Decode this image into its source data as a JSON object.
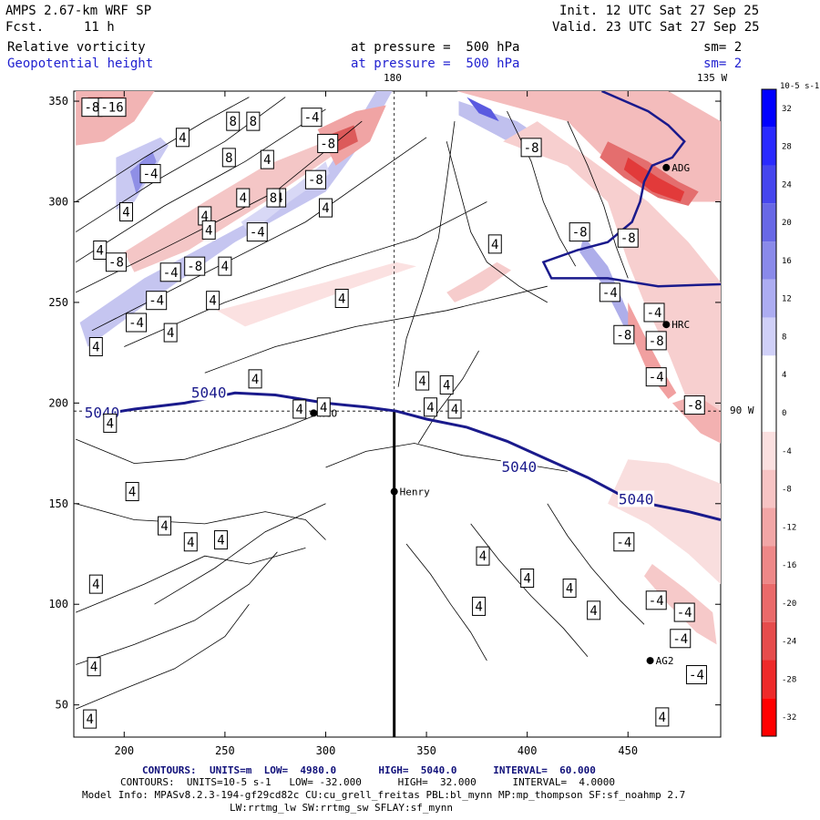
{
  "header": {
    "title_left": "AMPS 2.67-km WRF SP",
    "fcst_label": "Fcst.",
    "fcst_value": "11 h",
    "init": "Init. 12 UTC Sat 27 Sep 25",
    "valid": "Valid. 23 UTC Sat 27 Sep 25",
    "field1_name": "Relative vorticity",
    "field1_level": "at pressure =  500 hPa",
    "field1_sm": "sm= 2",
    "field2_name": "Geopotential height",
    "field2_level": "at pressure =  500 hPa",
    "field2_sm": "sm= 2",
    "lon_top_mid": "180",
    "lon_top_right": "135 W",
    "lon_right_mid": "90 W"
  },
  "colorbar": {
    "unit_label": "10-5 s-1",
    "labels": [
      "32",
      "28",
      "24",
      "20",
      "16",
      "12",
      "8",
      "4",
      "0",
      "-4",
      "-8",
      "-12",
      "-16",
      "-20",
      "-24",
      "-28",
      "-32"
    ],
    "colors": [
      "#0000ff",
      "#2a2aff",
      "#4646ee",
      "#6868e6",
      "#8a8aea",
      "#adadf2",
      "#d0d0f8",
      "#ffffff",
      "#ffffff",
      "#fbe0e0",
      "#f7c4c4",
      "#f2a6a6",
      "#ee8888",
      "#ea6a6a",
      "#e64c4c",
      "#ee2a2a",
      "#ff0000"
    ]
  },
  "footer": {
    "line1_label": "CONTOURS:",
    "line1": "UNITS=m  LOW=  4980.0       HIGH=  5040.0      INTERVAL=  60.000",
    "line2": "CONTOURS:  UNITS=10-5 s-1   LOW= -32.000      HIGH=  32.000      INTERVAL=  4.0000",
    "line3": "Model Info: MPASv8.2.3-194-gf29cd82c CU:cu_grell_freitas PBL:bl_mynn MP:mp_thompson SF:sf_noahmp 2.7",
    "line4": "LW:rrtmg_lw SW:rrtmg_sw SFLAY:sf_mynn"
  },
  "chart_data": {
    "type": "contour_map",
    "x_ticks": [
      200,
      250,
      300,
      350,
      400,
      450
    ],
    "y_ticks": [
      50,
      100,
      150,
      200,
      250,
      300,
      350
    ],
    "xlim": [
      175,
      496
    ],
    "ylim": [
      34,
      355
    ],
    "height_contour": {
      "label": "5040",
      "color": "#1a1a8c",
      "points": [
        [
          180,
          193
        ],
        [
          205,
          197
        ],
        [
          230,
          200
        ],
        [
          255,
          205
        ],
        [
          275,
          204
        ],
        [
          300,
          200
        ],
        [
          320,
          198
        ],
        [
          335,
          196
        ],
        [
          350,
          192
        ],
        [
          370,
          188
        ],
        [
          390,
          181
        ],
        [
          410,
          172
        ],
        [
          430,
          163
        ],
        [
          445,
          155
        ],
        [
          460,
          150
        ],
        [
          480,
          146
        ],
        [
          496,
          142
        ]
      ],
      "labels_at": [
        [
          189,
          195
        ],
        [
          242,
          205
        ],
        [
          396,
          168
        ],
        [
          454,
          152
        ]
      ]
    },
    "height_contour_north": {
      "points": [
        [
          437,
          355
        ],
        [
          460,
          345
        ],
        [
          470,
          338
        ],
        [
          478,
          330
        ],
        [
          472,
          322
        ],
        [
          462,
          318
        ],
        [
          458,
          310
        ],
        [
          456,
          300
        ],
        [
          452,
          290
        ],
        [
          440,
          280
        ],
        [
          425,
          276
        ],
        [
          408,
          270
        ],
        [
          412,
          262
        ],
        [
          440,
          262
        ],
        [
          465,
          258
        ],
        [
          496,
          259
        ]
      ]
    },
    "stations": [
      {
        "name": "NCO",
        "x": 294,
        "y": 195
      },
      {
        "name": "Henry",
        "x": 334,
        "y": 156
      },
      {
        "name": "HRC",
        "x": 469,
        "y": 239
      },
      {
        "name": "AG2",
        "x": 461,
        "y": 72
      },
      {
        "name": "ADG",
        "x": 469,
        "y": 317
      }
    ],
    "contour_labels": [
      {
        "text": "-8",
        "x": 184,
        "y": 347
      },
      {
        "text": "-16",
        "x": 194,
        "y": 347
      },
      {
        "text": "8",
        "x": 254,
        "y": 340
      },
      {
        "text": "8",
        "x": 264,
        "y": 340
      },
      {
        "text": "-4",
        "x": 293,
        "y": 342
      },
      {
        "text": "4",
        "x": 229,
        "y": 332
      },
      {
        "text": "-8",
        "x": 301,
        "y": 329
      },
      {
        "text": "8",
        "x": 252,
        "y": 322
      },
      {
        "text": "4",
        "x": 271,
        "y": 321
      },
      {
        "text": "-4",
        "x": 213,
        "y": 314
      },
      {
        "text": "-8",
        "x": 295,
        "y": 311
      },
      {
        "text": "4",
        "x": 259,
        "y": 302
      },
      {
        "text": "4",
        "x": 277,
        "y": 302
      },
      {
        "text": "8",
        "x": 274,
        "y": 302
      },
      {
        "text": "4",
        "x": 201,
        "y": 295
      },
      {
        "text": "4",
        "x": 240,
        "y": 293
      },
      {
        "text": "4",
        "x": 300,
        "y": 297
      },
      {
        "text": "-4",
        "x": 266,
        "y": 285
      },
      {
        "text": "4",
        "x": 242,
        "y": 286
      },
      {
        "text": "4",
        "x": 188,
        "y": 276
      },
      {
        "text": "-8",
        "x": 196,
        "y": 270
      },
      {
        "text": "-4",
        "x": 223,
        "y": 265
      },
      {
        "text": "-8",
        "x": 235,
        "y": 268
      },
      {
        "text": "4",
        "x": 250,
        "y": 268
      },
      {
        "text": "-4",
        "x": 216,
        "y": 251
      },
      {
        "text": "4",
        "x": 244,
        "y": 251
      },
      {
        "text": "4",
        "x": 308,
        "y": 252
      },
      {
        "text": "-4",
        "x": 206,
        "y": 240
      },
      {
        "text": "4",
        "x": 223,
        "y": 235
      },
      {
        "text": "4",
        "x": 186,
        "y": 228
      },
      {
        "text": "4",
        "x": 265,
        "y": 212
      },
      {
        "text": "4",
        "x": 287,
        "y": 197
      },
      {
        "text": "4",
        "x": 299,
        "y": 198
      },
      {
        "text": "4",
        "x": 193,
        "y": 190
      },
      {
        "text": "4",
        "x": 348,
        "y": 211
      },
      {
        "text": "4",
        "x": 360,
        "y": 209
      },
      {
        "text": "4",
        "x": 352,
        "y": 198
      },
      {
        "text": "4",
        "x": 364,
        "y": 197
      },
      {
        "text": "4",
        "x": 384,
        "y": 279
      },
      {
        "text": "-8",
        "x": 402,
        "y": 327
      },
      {
        "text": "-8",
        "x": 426,
        "y": 285
      },
      {
        "text": "-4",
        "x": 441,
        "y": 255
      },
      {
        "text": "-8",
        "x": 450,
        "y": 282
      },
      {
        "text": "-4",
        "x": 463,
        "y": 245
      },
      {
        "text": "-8",
        "x": 448,
        "y": 234
      },
      {
        "text": "-8",
        "x": 464,
        "y": 231
      },
      {
        "text": "-4",
        "x": 464,
        "y": 213
      },
      {
        "text": "-8",
        "x": 483,
        "y": 199
      },
      {
        "text": "4",
        "x": 204,
        "y": 156
      },
      {
        "text": "4",
        "x": 220,
        "y": 139
      },
      {
        "text": "4",
        "x": 233,
        "y": 131
      },
      {
        "text": "4",
        "x": 248,
        "y": 132
      },
      {
        "text": "4",
        "x": 378,
        "y": 124
      },
      {
        "text": "4",
        "x": 400,
        "y": 113
      },
      {
        "text": "4",
        "x": 433,
        "y": 97
      },
      {
        "text": "4",
        "x": 421,
        "y": 108
      },
      {
        "text": "-4",
        "x": 448,
        "y": 131
      },
      {
        "text": "-4",
        "x": 464,
        "y": 102
      },
      {
        "text": "-4",
        "x": 478,
        "y": 96
      },
      {
        "text": "-4",
        "x": 476,
        "y": 83
      },
      {
        "text": "-4",
        "x": 484,
        "y": 65
      },
      {
        "text": "4",
        "x": 376,
        "y": 99
      },
      {
        "text": "4",
        "x": 186,
        "y": 110
      },
      {
        "text": "4",
        "x": 185,
        "y": 69
      },
      {
        "text": "4",
        "x": 183,
        "y": 43
      },
      {
        "text": "4",
        "x": 467,
        "y": 44
      }
    ]
  }
}
